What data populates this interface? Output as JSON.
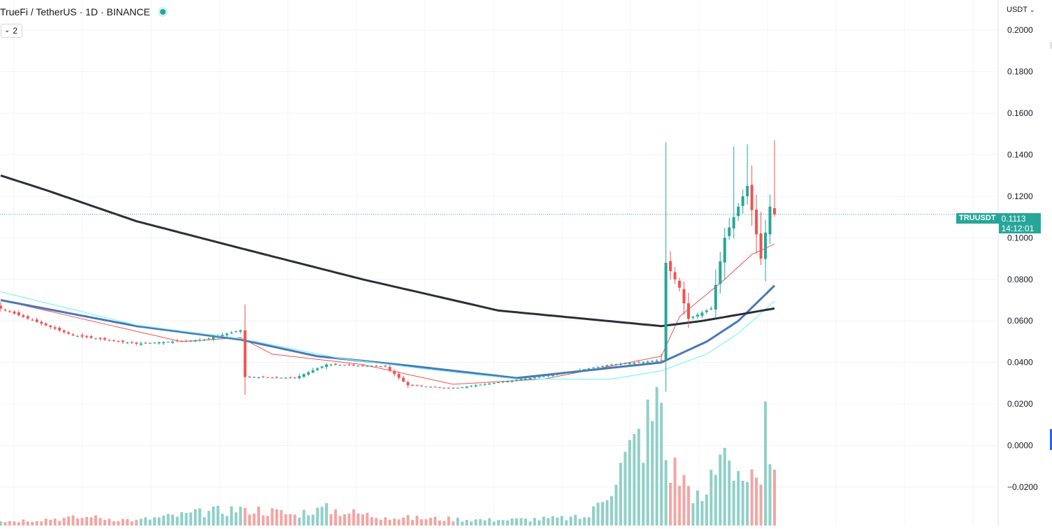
{
  "header": {
    "symbol_name": "TrueFi",
    "quote_name": "TetherUS",
    "interval": "1D",
    "exchange": "BINANCE",
    "title": "TrueFi / TetherUS · 1D · BINANCE",
    "indicator_count": "2"
  },
  "axis": {
    "currency": "USDT",
    "currency_chevron": "chevron-down-icon"
  },
  "colors": {
    "up": "#26a69a",
    "down": "#ef5350",
    "up_volume": "#8fd0c8",
    "down_volume": "#f3a5a2",
    "ma_fast": "#ef5350",
    "ma_mid": "#4a78b5",
    "ma_slow_light": "#7ff3f7",
    "ma_long": "#2a2e39"
  },
  "last_price": {
    "symbol": "TRUUSDT",
    "value": "0.1113",
    "countdown": "14:12:01"
  },
  "chart_data": {
    "type": "candlestick",
    "symbol": "TRUUSDT",
    "interval": "1D",
    "y_ticks": [
      0.2,
      0.18,
      0.16,
      0.14,
      0.12,
      0.1,
      0.08,
      0.06,
      0.04,
      0.02,
      0.0,
      -0.02
    ],
    "y_tick_labels": [
      "0.2000",
      "0.1800",
      "0.1600",
      "0.1400",
      "0.1200",
      "0.1000",
      "0.0800",
      "0.0600",
      "0.0400",
      "0.0200",
      "0.0000",
      "−0.0200"
    ],
    "ylim": [
      -0.0385,
      0.2145
    ],
    "grid": true,
    "num_candles": 172,
    "key_points": [
      [
        0,
        0.066
      ],
      [
        16,
        0.053
      ],
      [
        30,
        0.049
      ],
      [
        45,
        0.051
      ],
      [
        53,
        0.0555
      ],
      [
        54,
        0.033
      ],
      [
        65,
        0.0325
      ],
      [
        72,
        0.039
      ],
      [
        85,
        0.038
      ],
      [
        90,
        0.029
      ],
      [
        100,
        0.0275
      ],
      [
        112,
        0.031
      ],
      [
        122,
        0.034
      ],
      [
        135,
        0.039
      ],
      [
        146,
        0.041
      ],
      [
        147,
        0.088
      ],
      [
        150,
        0.076
      ],
      [
        152,
        0.061
      ],
      [
        157,
        0.066
      ],
      [
        160,
        0.1
      ],
      [
        163,
        0.115
      ],
      [
        165,
        0.125
      ],
      [
        168,
        0.09
      ],
      [
        170,
        0.115
      ],
      [
        171,
        0.1113
      ]
    ],
    "last_close": 0.1113,
    "moving_averages": [
      {
        "points": [
          [
            0,
            0.07
          ],
          [
            40,
            0.05
          ],
          [
            53,
            0.052
          ],
          [
            60,
            0.044
          ],
          [
            80,
            0.039
          ],
          [
            100,
            0.0295
          ],
          [
            120,
            0.032
          ],
          [
            146,
            0.043
          ],
          [
            150,
            0.062
          ],
          [
            160,
            0.08
          ],
          [
            166,
            0.092
          ],
          [
            171,
            0.097
          ]
        ]
      },
      {
        "points": [
          [
            0,
            0.07
          ],
          [
            30,
            0.0575
          ],
          [
            53,
            0.051
          ],
          [
            70,
            0.043
          ],
          [
            90,
            0.0385
          ],
          [
            114,
            0.0325
          ],
          [
            146,
            0.04
          ],
          [
            156,
            0.05
          ],
          [
            163,
            0.06
          ],
          [
            171,
            0.077
          ]
        ]
      },
      {
        "points": [
          [
            0,
            0.074
          ],
          [
            30,
            0.058
          ],
          [
            53,
            0.0515
          ],
          [
            75,
            0.042
          ],
          [
            95,
            0.0365
          ],
          [
            114,
            0.032
          ],
          [
            135,
            0.032
          ],
          [
            146,
            0.036
          ],
          [
            156,
            0.044
          ],
          [
            163,
            0.054
          ],
          [
            171,
            0.0695
          ]
        ]
      },
      {
        "points": [
          [
            0,
            0.13
          ],
          [
            10,
            0.123
          ],
          [
            30,
            0.108
          ],
          [
            53,
            0.095
          ],
          [
            80,
            0.08
          ],
          [
            110,
            0.065
          ],
          [
            146,
            0.0575
          ],
          [
            155,
            0.06
          ],
          [
            171,
            0.066
          ]
        ]
      }
    ],
    "volume": {
      "baseline_value": -0.0385,
      "key_points": [
        [
          0,
          0.03
        ],
        [
          10,
          0.05
        ],
        [
          20,
          0.06
        ],
        [
          30,
          0.04
        ],
        [
          54,
          0.13
        ],
        [
          65,
          0.08
        ],
        [
          70,
          0.13
        ],
        [
          85,
          0.06
        ],
        [
          110,
          0.04
        ],
        [
          130,
          0.06
        ],
        [
          146,
          0.9
        ],
        [
          147,
          0.48
        ],
        [
          155,
          0.18
        ],
        [
          160,
          0.57
        ],
        [
          165,
          0.32
        ],
        [
          168,
          0.3
        ],
        [
          169,
          0.91
        ],
        [
          170,
          0.45
        ],
        [
          171,
          0.41
        ]
      ]
    }
  }
}
